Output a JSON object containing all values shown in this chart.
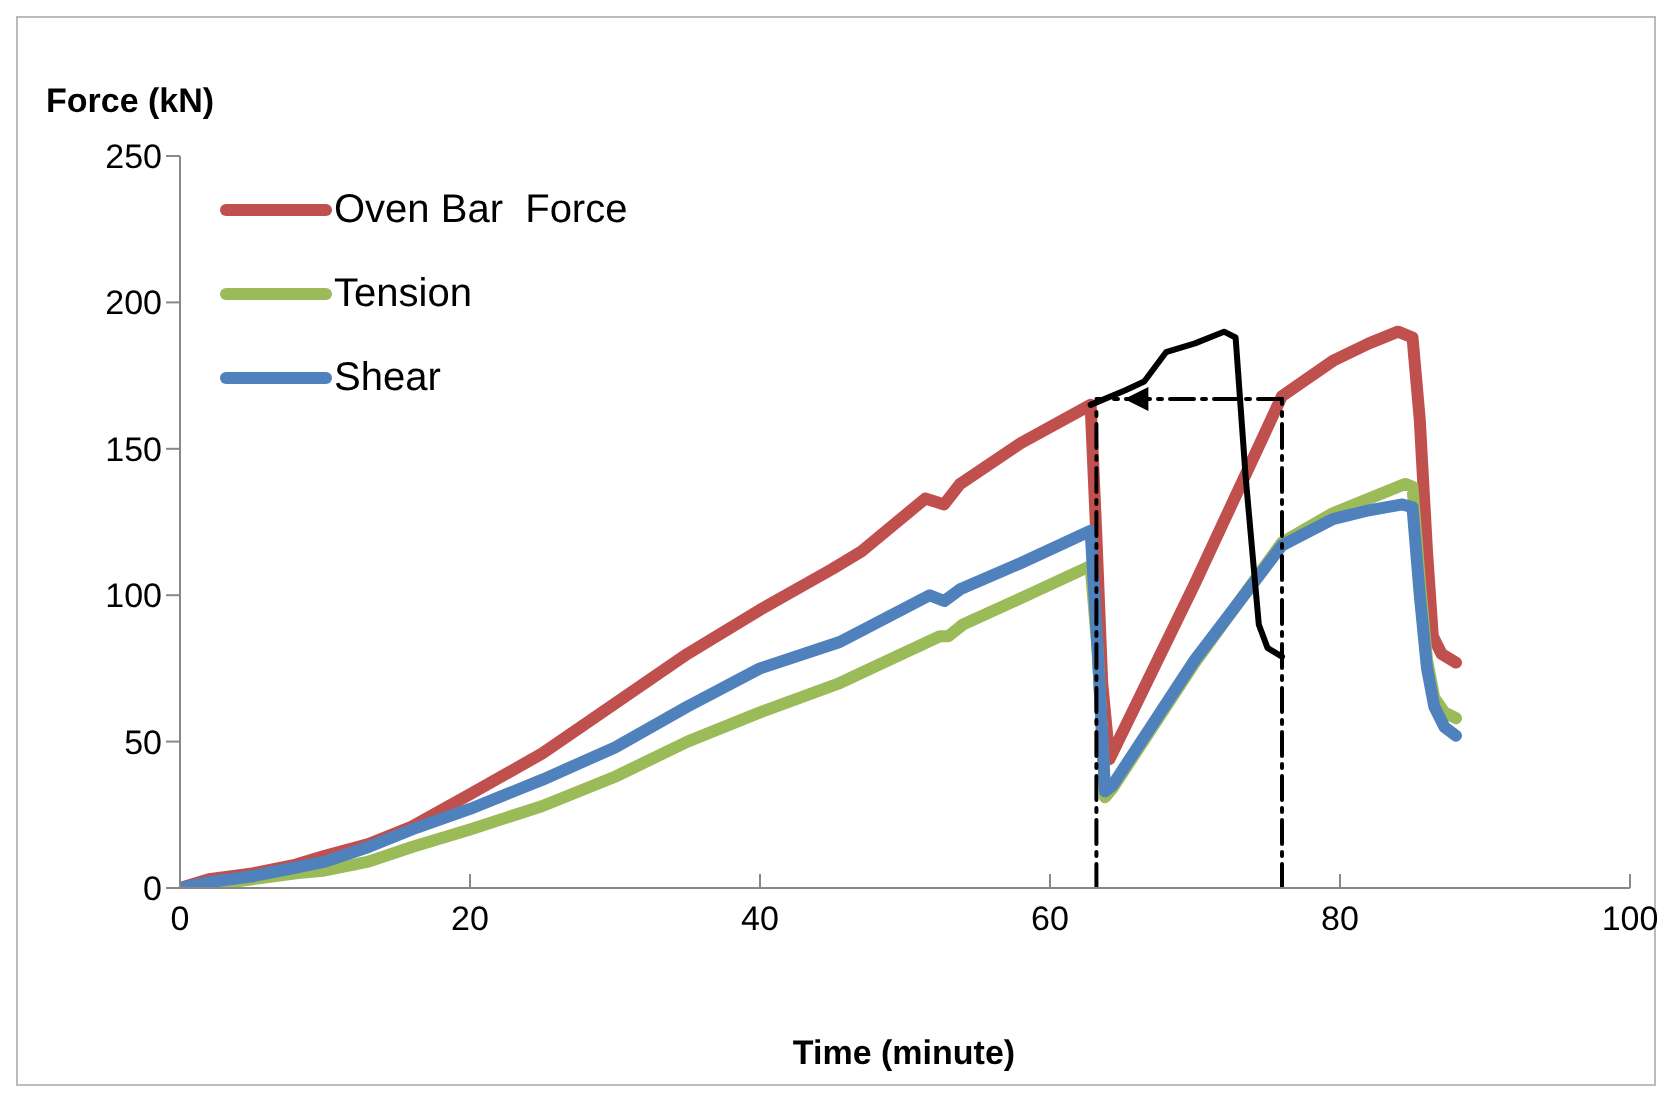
{
  "chart_data": {
    "type": "line",
    "xlabel": "Time (minute)",
    "ylabel": "Force (kN)",
    "xlim": [
      0,
      100
    ],
    "xticks": [
      0,
      20,
      40,
      60,
      80,
      100
    ],
    "ylim": [
      0,
      250
    ],
    "yticks": [
      0,
      50,
      100,
      150,
      200,
      250
    ],
    "legend": "top left",
    "marker": "none",
    "line_style": "solid",
    "series": [
      {
        "name": "Oven Bar  Force",
        "color": "#c0504d",
        "x": [
          0,
          2,
          5,
          8,
          10,
          13,
          16,
          20,
          25,
          30,
          35,
          40,
          45,
          47,
          51.4,
          52.7,
          53.8,
          58,
          62.8,
          63.2,
          63.6,
          64.1,
          70,
          76,
          79.5,
          82,
          84,
          85,
          85.5,
          86,
          86.4,
          87,
          88
        ],
        "values": [
          0,
          3,
          5,
          8,
          11,
          15,
          21,
          32,
          46,
          63,
          80,
          95,
          109,
          115,
          133,
          131,
          138,
          152,
          165,
          120,
          70,
          44,
          104,
          168,
          180,
          186,
          190,
          188,
          160,
          115,
          86,
          80,
          77
        ]
      },
      {
        "name": "Tension",
        "color": "#9bbb59",
        "x": [
          0,
          2,
          5,
          8,
          10,
          13,
          16,
          20,
          25,
          30,
          35,
          40,
          45.5,
          52.4,
          53,
          54,
          58,
          62.8,
          63.3,
          63.8,
          64.3,
          70,
          76,
          79.5,
          82,
          84.5,
          85,
          85.5,
          86,
          86.5,
          87.2,
          88
        ],
        "values": [
          0,
          1,
          3,
          5,
          6,
          9,
          14,
          20,
          28,
          38,
          50,
          60,
          70,
          86,
          86,
          90,
          99,
          110,
          80,
          31,
          34,
          77,
          118,
          128,
          133,
          138,
          137,
          105,
          78,
          65,
          60,
          58
        ]
      },
      {
        "name": "Shear",
        "color": "#4f81bd",
        "x": [
          0,
          2,
          5,
          8,
          10,
          13,
          16,
          20,
          25,
          30,
          35,
          40,
          45.5,
          51.7,
          52.7,
          53.8,
          58,
          62.8,
          63.3,
          63.8,
          64.3,
          70,
          76,
          79.5,
          82,
          84.3,
          85,
          85.5,
          86,
          86.5,
          87.2,
          88
        ],
        "values": [
          0,
          2,
          4,
          7,
          9,
          14,
          20,
          27,
          37,
          48,
          62,
          75,
          84,
          100,
          98,
          102,
          111,
          122,
          80,
          33,
          35,
          78,
          117,
          126,
          129,
          131,
          130,
          100,
          75,
          62,
          55,
          52
        ]
      },
      {
        "color": "#000000",
        "x": [
          62.8,
          65.2,
          66.5,
          68,
          70,
          72,
          72.8,
          73.5,
          74.4,
          75,
          76
        ],
        "values": [
          165,
          170,
          173,
          183,
          186,
          190,
          188,
          140,
          90,
          82,
          79
        ]
      },
      {
        "color": "#000000",
        "line_style": "dashed",
        "x": [
          76,
          63.2
        ],
        "values": [
          167,
          167
        ]
      },
      {
        "color": "#000000",
        "line_style": "dashed",
        "x": [
          63.2,
          63.2
        ],
        "values": [
          0,
          165
        ]
      },
      {
        "color": "#000000",
        "line_style": "dashed",
        "x": [
          76,
          76
        ],
        "values": [
          0,
          167
        ]
      }
    ]
  }
}
